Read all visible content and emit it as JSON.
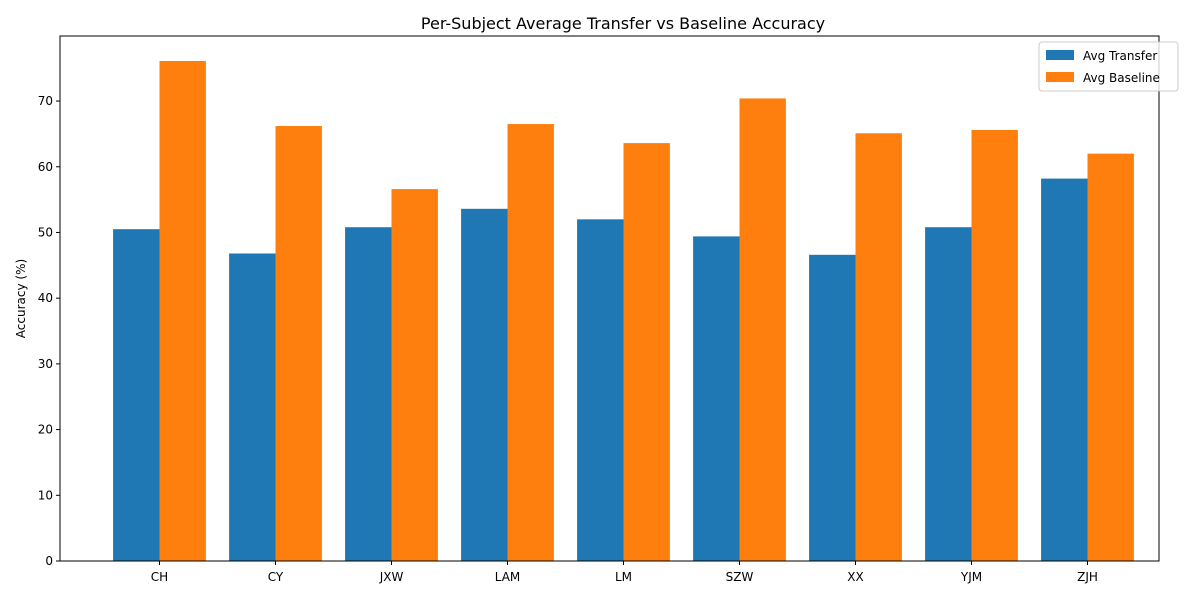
{
  "chart_data": {
    "type": "bar",
    "title": "Per-Subject Average Transfer vs Baseline Accuracy",
    "xlabel": "",
    "ylabel": "Accuracy (%)",
    "categories": [
      "CH",
      "CY",
      "JXW",
      "LAM",
      "LM",
      "SZW",
      "XX",
      "YJM",
      "ZJH"
    ],
    "series": [
      {
        "name": "Avg Transfer",
        "color": "#1f77b4",
        "values": [
          50.5,
          46.8,
          50.8,
          53.6,
          52.0,
          49.4,
          46.6,
          50.8,
          58.2
        ]
      },
      {
        "name": "Avg Baseline",
        "color": "#ff7f0e",
        "values": [
          76.1,
          66.2,
          56.6,
          66.5,
          63.6,
          70.4,
          65.1,
          65.6,
          62.0
        ]
      }
    ],
    "ylim": [
      0,
      79.9
    ],
    "yticks": [
      0,
      10,
      20,
      30,
      40,
      50,
      60,
      70
    ],
    "grid": false,
    "legend_position": "top-right"
  }
}
